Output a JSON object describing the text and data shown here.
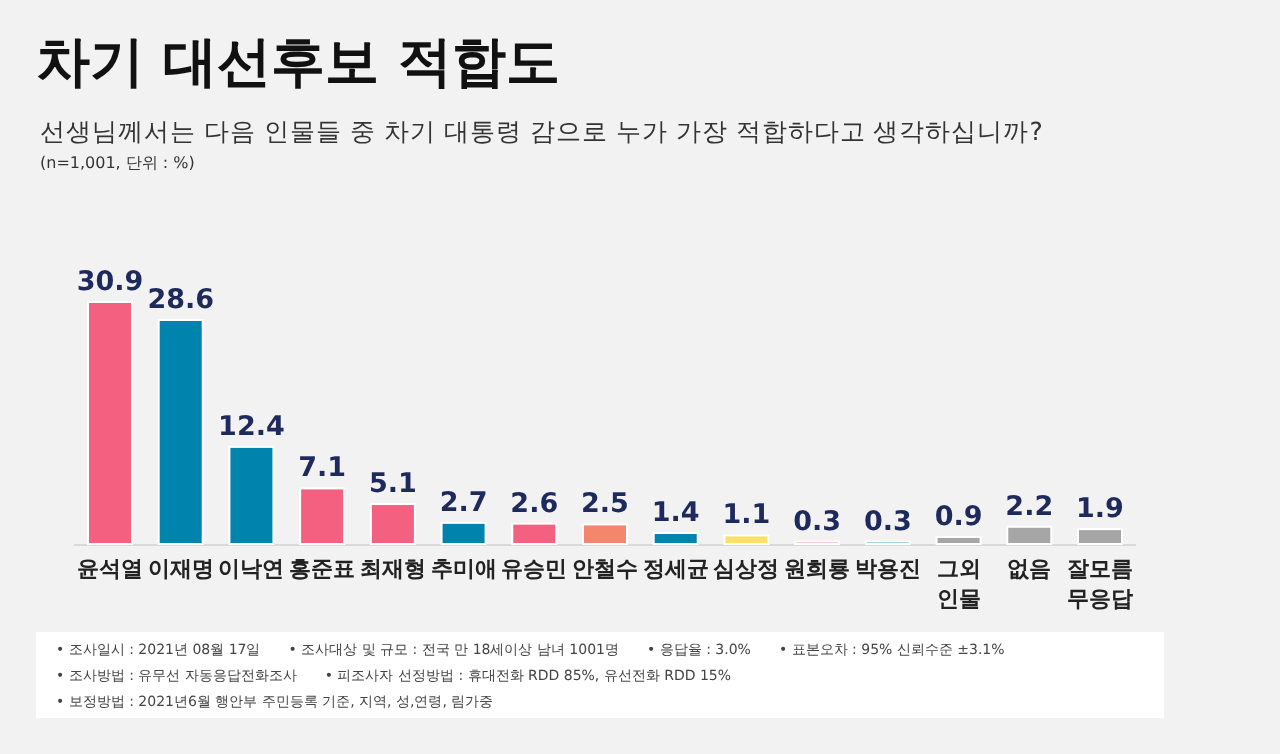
{
  "chart_data": {
    "type": "bar",
    "title": "차기 대선후보 적합도",
    "subtitle": "선생님께서는 다음 인물들 중 차기 대통령 감으로 누가 가장 적합하다고 생각하십니까?",
    "categories": [
      "윤석열",
      "이재명",
      "이낙연",
      "홍준표",
      "최재형",
      "추미애",
      "유승민",
      "안철수",
      "정세균",
      "심상정",
      "원희룡",
      "박용진",
      "그외\n인물",
      "없음",
      "잘모름\n무응답"
    ],
    "values": [
      30.9,
      28.6,
      12.4,
      7.1,
      5.1,
      2.7,
      2.6,
      2.5,
      1.4,
      1.1,
      0.3,
      0.3,
      0.9,
      2.2,
      1.9
    ],
    "colors": [
      "#f4607f",
      "#0083ad",
      "#0083ad",
      "#f4607f",
      "#f4607f",
      "#0083ad",
      "#f4607f",
      "#f4866e",
      "#0083ad",
      "#ffe066",
      "#f4607f",
      "#0083ad",
      "#a6a6a6",
      "#a6a6a6",
      "#a6a6a6"
    ],
    "data_labels": true,
    "annotations": [
      "(n=1,001, 단위 : %)",
      "• 조사일시 : 2021년 08월 17일",
      "• 조사대상 및 규모 : 전국 만 18세이상 남녀 1001명",
      "• 응답율 : 3.0%",
      "• 표본오차 : 95% 신뢰수준 ±3.1%",
      "• 조사방법 : 유무선 자동응답전화조사",
      "• 피조사자 선정방법 : 휴대전화 RDD 85%, 유선전화 RDD 15%",
      "• 보정방법 : 2021년6월 행안부 주민등록 기준, 지역, 성,연령, 림가중"
    ]
  }
}
